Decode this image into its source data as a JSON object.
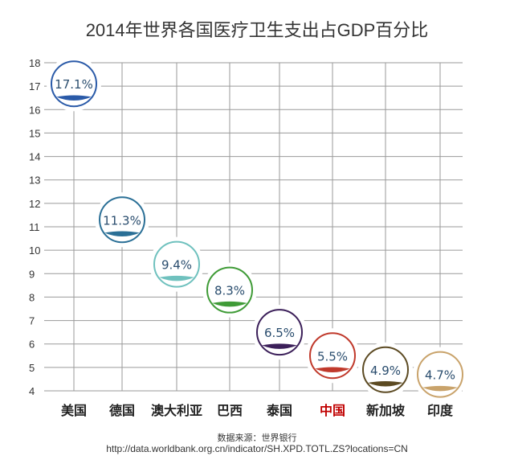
{
  "title": "2014年世界各国医疗卫生支出占GDP百分比",
  "source": {
    "label": "数据来源：世界银行",
    "url": "http://data.worldbank.org.cn/indicator/SH.XPD.TOTL.ZS?locations=CN"
  },
  "chart_data": {
    "type": "scatter",
    "title": "2014年世界各国医疗卫生支出占GDP百分比",
    "ylim": [
      4,
      18
    ],
    "yticks": [
      4,
      5,
      6,
      7,
      8,
      9,
      10,
      11,
      12,
      13,
      14,
      15,
      16,
      17,
      18
    ],
    "grid": true,
    "categories": [
      "美国",
      "德国",
      "澳大利亚",
      "巴西",
      "泰国",
      "中国",
      "新加坡",
      "印度"
    ],
    "values": [
      17.1,
      11.3,
      9.4,
      8.3,
      6.5,
      5.5,
      4.9,
      4.7
    ],
    "labels": [
      "17.1%",
      "11.3%",
      "9.4%",
      "8.3%",
      "6.5%",
      "5.5%",
      "4.9%",
      "4.7%"
    ],
    "colors": [
      "#2a5aa8",
      "#2a6f96",
      "#6fc1be",
      "#3f9b37",
      "#3b1f59",
      "#c0392b",
      "#5c4a22",
      "#c9a36b"
    ],
    "highlight_category": "中国",
    "highlight_color": "#c00000",
    "category_label_color": "#222222"
  }
}
